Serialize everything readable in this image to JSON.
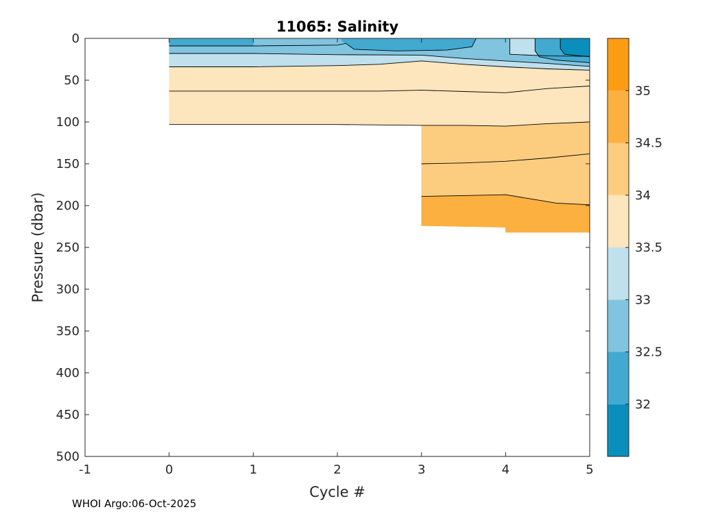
{
  "chart_data": {
    "type": "contour",
    "title": "11065:  Salinity",
    "xlabel": "Cycle #",
    "ylabel": "Pressure (dbar)",
    "xlim": [
      -1,
      5
    ],
    "ylim": [
      0,
      500
    ],
    "y_reversed": true,
    "x_ticks": [
      "-1",
      "0",
      "1",
      "2",
      "3",
      "4",
      "5"
    ],
    "y_ticks": [
      "0",
      "50",
      "100",
      "150",
      "200",
      "250",
      "300",
      "350",
      "400",
      "450",
      "500"
    ],
    "colorbar": {
      "range": [
        31.5,
        35.5
      ],
      "ticks": [
        "32",
        "32.5",
        "33",
        "33.5",
        "34",
        "34.5",
        "35"
      ],
      "bands": [
        {
          "lo": 31.5,
          "hi": 32.0,
          "color": "#0a8fbd"
        },
        {
          "lo": 32.0,
          "hi": 32.5,
          "color": "#42a9d0"
        },
        {
          "lo": 32.5,
          "hi": 33.0,
          "color": "#80c4df"
        },
        {
          "lo": 33.0,
          "hi": 33.5,
          "color": "#bfe0ec"
        },
        {
          "lo": 33.5,
          "hi": 34.0,
          "color": "#fde5bd"
        },
        {
          "lo": 34.0,
          "hi": 34.5,
          "color": "#fccd7f"
        },
        {
          "lo": 34.5,
          "hi": 35.0,
          "color": "#fcb040"
        },
        {
          "lo": 35.0,
          "hi": 35.5,
          "color": "#fc9c12"
        }
      ]
    },
    "regions": [
      {
        "color": "#fde5bd",
        "pts": [
          [
            0,
            0
          ],
          [
            5,
            0
          ],
          [
            5,
            100
          ],
          [
            4.5,
            102
          ],
          [
            4,
            105
          ],
          [
            3.5,
            104
          ],
          [
            3,
            104
          ],
          [
            2.5,
            103.5
          ],
          [
            2,
            103
          ],
          [
            1,
            103
          ],
          [
            0,
            103
          ]
        ]
      },
      {
        "color": "#fccd7f",
        "pts": [
          [
            3,
            104
          ],
          [
            3.5,
            104
          ],
          [
            4,
            105
          ],
          [
            4.5,
            102
          ],
          [
            5,
            100
          ],
          [
            5,
            232
          ],
          [
            4.5,
            232
          ],
          [
            4,
            232
          ],
          [
            4,
            226
          ],
          [
            3.5,
            225
          ],
          [
            3,
            224
          ]
        ]
      },
      {
        "color": "#fcb040",
        "pts": [
          [
            3,
            189
          ],
          [
            3.5,
            188
          ],
          [
            4,
            187
          ],
          [
            4.3,
            192
          ],
          [
            4.6,
            197
          ],
          [
            5,
            199
          ],
          [
            5,
            232
          ],
          [
            4.5,
            232
          ],
          [
            4,
            232
          ],
          [
            4,
            226
          ],
          [
            3.5,
            225
          ],
          [
            3,
            224
          ]
        ]
      },
      {
        "color": "#bfe0ec",
        "pts": [
          [
            0,
            0
          ],
          [
            5,
            0
          ],
          [
            5,
            38
          ],
          [
            4.5,
            36.5
          ],
          [
            4,
            34
          ],
          [
            3.5,
            31
          ],
          [
            3,
            27
          ],
          [
            2.5,
            31
          ],
          [
            2,
            32.5
          ],
          [
            1,
            34
          ],
          [
            0,
            34
          ]
        ]
      },
      {
        "color": "#80c4df",
        "pts": [
          [
            0,
            0
          ],
          [
            2.05,
            0
          ],
          [
            2.05,
            3
          ],
          [
            2.2,
            13
          ],
          [
            2.7,
            15
          ],
          [
            3.3,
            14
          ],
          [
            3.6,
            10
          ],
          [
            3.65,
            0
          ],
          [
            4.05,
            0
          ],
          [
            4.05,
            19
          ],
          [
            4.5,
            21
          ],
          [
            5,
            21.5
          ],
          [
            5,
            33.5
          ],
          [
            4.5,
            30
          ],
          [
            4,
            27
          ],
          [
            3.5,
            24
          ],
          [
            3,
            20
          ],
          [
            2,
            19.5
          ],
          [
            1,
            18
          ],
          [
            0,
            18
          ]
        ]
      },
      {
        "color": "#80c4df",
        "pts": [
          [
            0,
            0
          ],
          [
            1,
            0
          ],
          [
            1,
            9
          ],
          [
            0,
            9
          ]
        ]
      },
      {
        "color": "#42a9d0",
        "pts": [
          [
            0,
            0
          ],
          [
            2.05,
            0
          ],
          [
            2.05,
            3
          ],
          [
            2.2,
            13
          ],
          [
            2.7,
            15
          ],
          [
            3.3,
            14
          ],
          [
            3.6,
            10
          ],
          [
            3.65,
            0
          ]
        ]
      },
      {
        "color": "#42a9d0",
        "pts": [
          [
            4.35,
            0
          ],
          [
            5,
            0
          ],
          [
            5,
            29
          ],
          [
            4.6,
            26
          ],
          [
            4.4,
            22
          ],
          [
            4.35,
            15
          ]
        ]
      },
      {
        "color": "#42a9d0",
        "pts": [
          [
            0,
            0
          ],
          [
            1,
            0
          ],
          [
            1,
            9
          ],
          [
            0,
            9
          ]
        ]
      },
      {
        "color": "#0a8fbd",
        "pts": [
          [
            4.65,
            0
          ],
          [
            5,
            0
          ],
          [
            5,
            22
          ],
          [
            4.7,
            19
          ],
          [
            4.65,
            12
          ]
        ]
      }
    ],
    "contour_lines": [
      {
        "level": 32.5,
        "pts": [
          [
            0,
            9
          ],
          [
            1,
            9
          ],
          [
            2,
            8
          ],
          [
            2.1,
            6
          ],
          [
            2.2,
            13
          ],
          [
            2.7,
            15
          ],
          [
            3.3,
            14
          ],
          [
            3.6,
            10
          ],
          [
            3.65,
            0
          ]
        ]
      },
      {
        "level": 33.0,
        "pts": [
          [
            0,
            18
          ],
          [
            1,
            18
          ],
          [
            2,
            19.5
          ],
          [
            3,
            20
          ],
          [
            3.5,
            24
          ],
          [
            4,
            27
          ],
          [
            4.5,
            30
          ],
          [
            5,
            33.5
          ]
        ]
      },
      {
        "level": 33.0,
        "pts": [
          [
            4.05,
            0
          ],
          [
            4.05,
            19
          ],
          [
            4.5,
            21
          ],
          [
            5,
            21.5
          ]
        ]
      },
      {
        "level": 32.5,
        "pts": [
          [
            4.35,
            0
          ],
          [
            4.35,
            15
          ],
          [
            4.4,
            22
          ],
          [
            4.6,
            26
          ],
          [
            5,
            29
          ]
        ]
      },
      {
        "level": 32.0,
        "pts": [
          [
            4.65,
            0
          ],
          [
            4.65,
            12
          ],
          [
            4.7,
            19
          ],
          [
            5,
            22
          ]
        ]
      },
      {
        "level": 33.5,
        "pts": [
          [
            0,
            34
          ],
          [
            1,
            34
          ],
          [
            2,
            32.5
          ],
          [
            2.5,
            31
          ],
          [
            3,
            27
          ],
          [
            3.5,
            31
          ],
          [
            4,
            34
          ],
          [
            4.5,
            36.5
          ],
          [
            5,
            38
          ]
        ]
      },
      {
        "level": 33.5,
        "pts": [
          [
            0,
            63
          ],
          [
            1,
            63
          ],
          [
            2,
            63
          ],
          [
            2.5,
            63
          ],
          [
            3,
            62
          ],
          [
            3.5,
            63.5
          ],
          [
            4,
            65
          ],
          [
            4.5,
            60
          ],
          [
            5,
            57
          ]
        ]
      },
      {
        "level": 34.0,
        "pts": [
          [
            0,
            103
          ],
          [
            1,
            103
          ],
          [
            2,
            103
          ],
          [
            2.5,
            103.5
          ],
          [
            3,
            104
          ],
          [
            3.5,
            104
          ],
          [
            4,
            105
          ],
          [
            4.5,
            102
          ],
          [
            5,
            100
          ]
        ]
      },
      {
        "level": 34.0,
        "pts": [
          [
            3,
            150
          ],
          [
            3.5,
            149
          ],
          [
            4,
            147
          ],
          [
            4.5,
            143
          ],
          [
            5,
            138
          ]
        ]
      },
      {
        "level": 34.5,
        "pts": [
          [
            3,
            189
          ],
          [
            3.5,
            188
          ],
          [
            4,
            187
          ],
          [
            4.3,
            192
          ],
          [
            4.6,
            197
          ],
          [
            5,
            199
          ]
        ]
      }
    ]
  },
  "credit": "WHOI Argo:06-Oct-2025"
}
